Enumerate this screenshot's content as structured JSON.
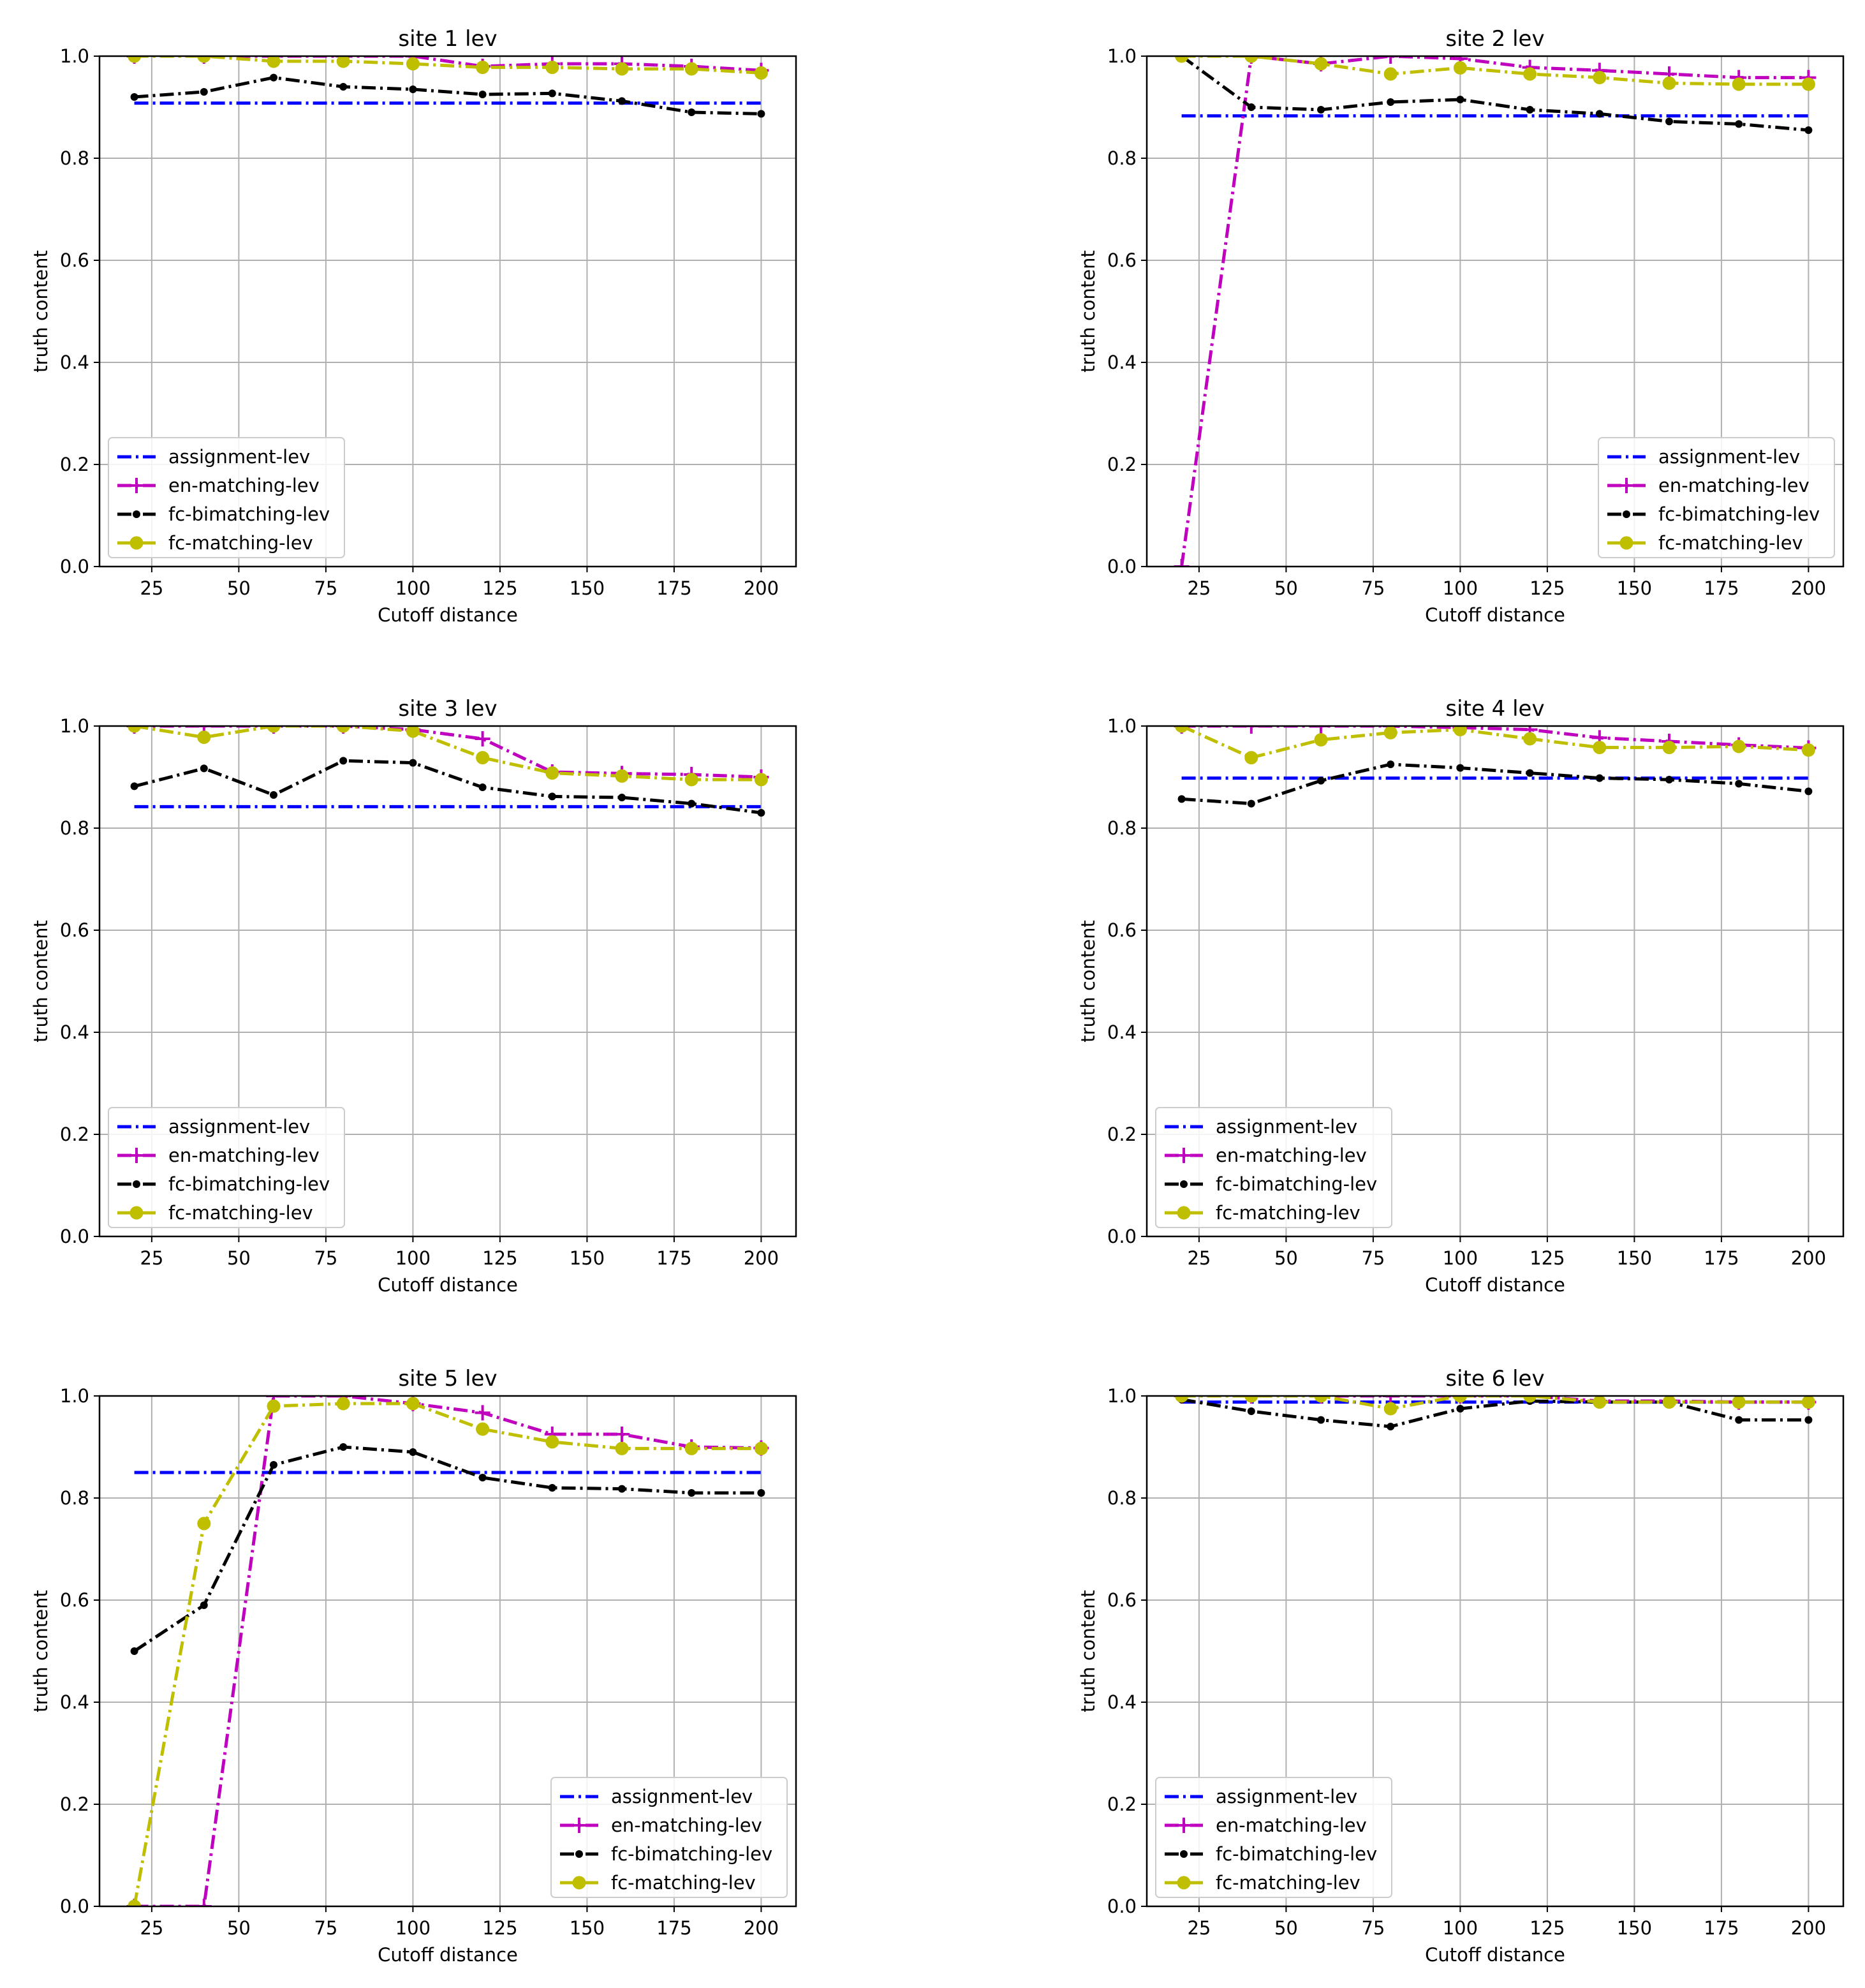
{
  "chart_data": [
    {
      "type": "line",
      "title": "site 1 lev",
      "xlabel": "Cutoff distance",
      "ylabel": "truth content",
      "xlim": [
        10,
        210
      ],
      "ylim": [
        0,
        1.0
      ],
      "xticks": [
        25,
        50,
        75,
        100,
        125,
        150,
        175,
        200
      ],
      "xtick_labels": [
        "25",
        "50",
        "75",
        "100",
        "125",
        "150",
        "175",
        "200"
      ],
      "yticks": [
        0,
        0.2,
        0.4,
        0.6,
        0.8,
        1.0
      ],
      "ytick_labels": [
        "0.0",
        "0.2",
        "0.4",
        "0.6",
        "0.8",
        "1.0"
      ],
      "grid": true,
      "legend_position": "bottom-left",
      "x": [
        20,
        40,
        60,
        80,
        100,
        120,
        140,
        160,
        180,
        200
      ],
      "series": [
        {
          "name": "assignment-lev",
          "values": [
            0.908,
            0.908,
            0.908,
            0.908,
            0.908,
            0.908,
            0.908,
            0.908,
            0.908,
            0.908
          ]
        },
        {
          "name": "en-matching-lev",
          "values": [
            1.0,
            1.0,
            1.0,
            1.0,
            1.0,
            0.98,
            0.985,
            0.985,
            0.98,
            0.972
          ]
        },
        {
          "name": "fc-bimatching-lev",
          "values": [
            0.92,
            0.93,
            0.958,
            0.94,
            0.935,
            0.925,
            0.927,
            0.912,
            0.89,
            0.887
          ]
        },
        {
          "name": "fc-matching-lev",
          "values": [
            1.0,
            1.0,
            0.99,
            0.99,
            0.985,
            0.978,
            0.978,
            0.975,
            0.975,
            0.967
          ]
        }
      ]
    },
    {
      "type": "line",
      "title": "site 2 lev",
      "xlabel": "Cutoff distance",
      "ylabel": "truth content",
      "xlim": [
        10,
        210
      ],
      "ylim": [
        0,
        1.0
      ],
      "xticks": [
        25,
        50,
        75,
        100,
        125,
        150,
        175,
        200
      ],
      "xtick_labels": [
        "25",
        "50",
        "75",
        "100",
        "125",
        "150",
        "175",
        "200"
      ],
      "yticks": [
        0,
        0.2,
        0.4,
        0.6,
        0.8,
        1.0
      ],
      "ytick_labels": [
        "0.0",
        "0.2",
        "0.4",
        "0.6",
        "0.8",
        "1.0"
      ],
      "grid": true,
      "legend_position": "bottom-right",
      "x": [
        20,
        40,
        60,
        80,
        100,
        120,
        140,
        160,
        180,
        200
      ],
      "series": [
        {
          "name": "assignment-lev",
          "values": [
            0.883,
            0.883,
            0.883,
            0.883,
            0.883,
            0.883,
            0.883,
            0.883,
            0.883,
            0.883
          ]
        },
        {
          "name": "en-matching-lev",
          "values": [
            0.0,
            1.0,
            0.985,
            1.0,
            0.995,
            0.978,
            0.972,
            0.965,
            0.958,
            0.958
          ]
        },
        {
          "name": "fc-bimatching-lev",
          "values": [
            1.0,
            0.9,
            0.895,
            0.91,
            0.915,
            0.895,
            0.887,
            0.872,
            0.867,
            0.855
          ]
        },
        {
          "name": "fc-matching-lev",
          "values": [
            1.0,
            1.0,
            0.985,
            0.965,
            0.977,
            0.965,
            0.958,
            0.947,
            0.945,
            0.945
          ]
        }
      ]
    },
    {
      "type": "line",
      "title": "site 3 lev",
      "xlabel": "Cutoff distance",
      "ylabel": "truth content",
      "xlim": [
        10,
        210
      ],
      "ylim": [
        0,
        1.0
      ],
      "xticks": [
        25,
        50,
        75,
        100,
        125,
        150,
        175,
        200
      ],
      "xtick_labels": [
        "25",
        "50",
        "75",
        "100",
        "125",
        "150",
        "175",
        "200"
      ],
      "yticks": [
        0,
        0.2,
        0.4,
        0.6,
        0.8,
        1.0
      ],
      "ytick_labels": [
        "0.0",
        "0.2",
        "0.4",
        "0.6",
        "0.8",
        "1.0"
      ],
      "grid": true,
      "legend_position": "bottom-left",
      "x": [
        20,
        40,
        60,
        80,
        100,
        120,
        140,
        160,
        180,
        200
      ],
      "series": [
        {
          "name": "assignment-lev",
          "values": [
            0.842,
            0.842,
            0.842,
            0.842,
            0.842,
            0.842,
            0.842,
            0.842,
            0.842,
            0.842
          ]
        },
        {
          "name": "en-matching-lev",
          "values": [
            1.0,
            1.0,
            1.0,
            1.0,
            0.993,
            0.975,
            0.91,
            0.907,
            0.905,
            0.9
          ]
        },
        {
          "name": "fc-bimatching-lev",
          "values": [
            0.882,
            0.917,
            0.865,
            0.932,
            0.928,
            0.88,
            0.862,
            0.86,
            0.848,
            0.83
          ]
        },
        {
          "name": "fc-matching-lev",
          "values": [
            1.0,
            0.978,
            1.0,
            1.0,
            0.99,
            0.938,
            0.908,
            0.902,
            0.895,
            0.895
          ]
        }
      ]
    },
    {
      "type": "line",
      "title": "site 4 lev",
      "xlabel": "Cutoff distance",
      "ylabel": "truth content",
      "xlim": [
        10,
        210
      ],
      "ylim": [
        0,
        1.0
      ],
      "xticks": [
        25,
        50,
        75,
        100,
        125,
        150,
        175,
        200
      ],
      "xtick_labels": [
        "25",
        "50",
        "75",
        "100",
        "125",
        "150",
        "175",
        "200"
      ],
      "yticks": [
        0,
        0.2,
        0.4,
        0.6,
        0.8,
        1.0
      ],
      "ytick_labels": [
        "0.0",
        "0.2",
        "0.4",
        "0.6",
        "0.8",
        "1.0"
      ],
      "grid": true,
      "legend_position": "bottom-left",
      "x": [
        20,
        40,
        60,
        80,
        100,
        120,
        140,
        160,
        180,
        200
      ],
      "series": [
        {
          "name": "assignment-lev",
          "values": [
            0.898,
            0.898,
            0.898,
            0.898,
            0.898,
            0.898,
            0.898,
            0.898,
            0.898,
            0.898
          ]
        },
        {
          "name": "en-matching-lev",
          "values": [
            1.0,
            1.0,
            1.0,
            1.0,
            0.997,
            0.993,
            0.977,
            0.97,
            0.963,
            0.957
          ]
        },
        {
          "name": "fc-bimatching-lev",
          "values": [
            0.857,
            0.848,
            0.893,
            0.925,
            0.918,
            0.908,
            0.898,
            0.895,
            0.887,
            0.872
          ]
        },
        {
          "name": "fc-matching-lev",
          "values": [
            1.0,
            0.938,
            0.973,
            0.987,
            0.993,
            0.975,
            0.958,
            0.958,
            0.96,
            0.953
          ]
        }
      ]
    },
    {
      "type": "line",
      "title": "site 5 lev",
      "xlabel": "Cutoff distance",
      "ylabel": "truth content",
      "xlim": [
        10,
        210
      ],
      "ylim": [
        0,
        1.0
      ],
      "xticks": [
        25,
        50,
        75,
        100,
        125,
        150,
        175,
        200
      ],
      "xtick_labels": [
        "25",
        "50",
        "75",
        "100",
        "125",
        "150",
        "175",
        "200"
      ],
      "yticks": [
        0,
        0.2,
        0.4,
        0.6,
        0.8,
        1.0
      ],
      "ytick_labels": [
        "0.0",
        "0.2",
        "0.4",
        "0.6",
        "0.8",
        "1.0"
      ],
      "grid": true,
      "legend_position": "bottom-right",
      "x": [
        20,
        40,
        60,
        80,
        100,
        120,
        140,
        160,
        180,
        200
      ],
      "series": [
        {
          "name": "assignment-lev",
          "values": [
            0.85,
            0.85,
            0.85,
            0.85,
            0.85,
            0.85,
            0.85,
            0.85,
            0.85,
            0.85
          ]
        },
        {
          "name": "en-matching-lev",
          "values": [
            0.0,
            0.0,
            1.0,
            1.0,
            0.985,
            0.967,
            0.925,
            0.925,
            0.9,
            0.898
          ]
        },
        {
          "name": "fc-bimatching-lev",
          "values": [
            0.5,
            0.59,
            0.865,
            0.9,
            0.89,
            0.84,
            0.82,
            0.818,
            0.81,
            0.81
          ]
        },
        {
          "name": "fc-matching-lev",
          "values": [
            0.0,
            0.75,
            0.98,
            0.985,
            0.985,
            0.935,
            0.91,
            0.897,
            0.897,
            0.897
          ]
        }
      ]
    },
    {
      "type": "line",
      "title": "site 6 lev",
      "xlabel": "Cutoff distance",
      "ylabel": "truth content",
      "xlim": [
        10,
        210
      ],
      "ylim": [
        0,
        1.0
      ],
      "xticks": [
        25,
        50,
        75,
        100,
        125,
        150,
        175,
        200
      ],
      "xtick_labels": [
        "25",
        "50",
        "75",
        "100",
        "125",
        "150",
        "175",
        "200"
      ],
      "yticks": [
        0,
        0.2,
        0.4,
        0.6,
        0.8,
        1.0
      ],
      "ytick_labels": [
        "0.0",
        "0.2",
        "0.4",
        "0.6",
        "0.8",
        "1.0"
      ],
      "grid": true,
      "legend_position": "bottom-left",
      "x": [
        20,
        40,
        60,
        80,
        100,
        120,
        140,
        160,
        180,
        200
      ],
      "series": [
        {
          "name": "assignment-lev",
          "values": [
            0.988,
            0.988,
            0.988,
            0.988,
            0.988,
            0.988,
            0.988,
            0.988,
            0.988,
            0.988
          ]
        },
        {
          "name": "en-matching-lev",
          "values": [
            1.0,
            1.0,
            1.0,
            1.0,
            1.0,
            1.0,
            0.99,
            0.99,
            0.988,
            0.988
          ]
        },
        {
          "name": "fc-bimatching-lev",
          "values": [
            0.993,
            0.97,
            0.953,
            0.94,
            0.975,
            0.99,
            0.988,
            0.988,
            0.953,
            0.953
          ]
        },
        {
          "name": "fc-matching-lev",
          "values": [
            1.0,
            1.0,
            1.0,
            0.975,
            1.0,
            1.0,
            0.988,
            0.988,
            0.988,
            0.988
          ]
        }
      ]
    }
  ],
  "series_styles": {
    "assignment-lev": {
      "color": "#0000ff",
      "marker": "none"
    },
    "en-matching-lev": {
      "color": "#bf00bf",
      "marker": "plus"
    },
    "fc-bimatching-lev": {
      "color": "#000000",
      "marker": "dot"
    },
    "fc-matching-lev": {
      "color": "#bfbf00",
      "marker": "circle"
    }
  }
}
